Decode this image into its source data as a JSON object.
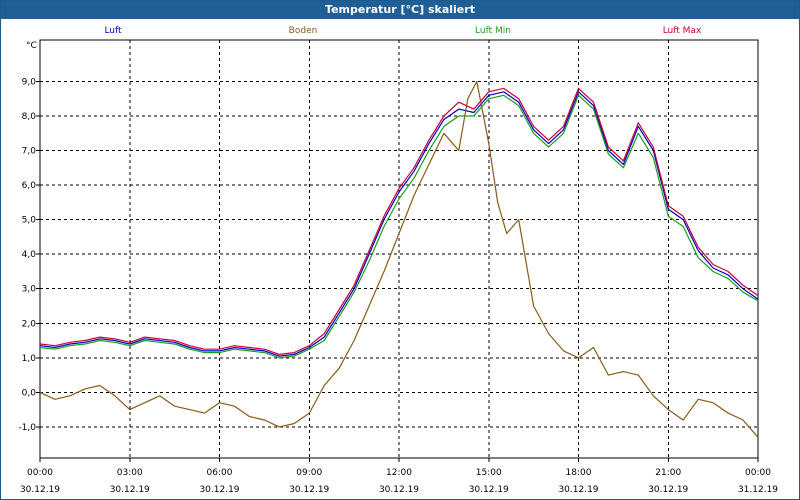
{
  "window": {
    "title": "Temperatur [°C] skaliert"
  },
  "chart_data": {
    "type": "line",
    "title": "Temperatur [°C] skaliert",
    "ylabel": "°C",
    "xlabel": "",
    "ylim": [
      -1.9,
      10.2
    ],
    "grid": true,
    "legend_position": "top",
    "y_ticks": [
      "9,0",
      "8,0",
      "7,0",
      "6,0",
      "5,0",
      "4,0",
      "3,0",
      "2,0",
      "1,0",
      "0,0",
      "-1,0"
    ],
    "y_tick_values": [
      9,
      8,
      7,
      6,
      5,
      4,
      3,
      2,
      1,
      0,
      -1
    ],
    "x_tick_hours": [
      0,
      3,
      6,
      9,
      12,
      15,
      18,
      21,
      24
    ],
    "x_ticks": [
      {
        "time": "00:00",
        "date": "30.12.19"
      },
      {
        "time": "03:00",
        "date": "30.12.19"
      },
      {
        "time": "06:00",
        "date": "30.12.19"
      },
      {
        "time": "09:00",
        "date": "30.12.19"
      },
      {
        "time": "12:00",
        "date": "30.12.19"
      },
      {
        "time": "15:00",
        "date": "30.12.19"
      },
      {
        "time": "18:00",
        "date": "30.12.19"
      },
      {
        "time": "21:00",
        "date": "30.12.19"
      },
      {
        "time": "00:00",
        "date": "31.12.19"
      }
    ],
    "series": [
      {
        "name": "Luft",
        "color": "#0000cc",
        "points": [
          [
            0,
            1.35
          ],
          [
            0.5,
            1.3
          ],
          [
            1,
            1.4
          ],
          [
            1.5,
            1.45
          ],
          [
            2,
            1.55
          ],
          [
            2.5,
            1.5
          ],
          [
            3,
            1.4
          ],
          [
            3.5,
            1.55
          ],
          [
            4,
            1.5
          ],
          [
            4.5,
            1.45
          ],
          [
            5,
            1.3
          ],
          [
            5.5,
            1.2
          ],
          [
            6,
            1.2
          ],
          [
            6.5,
            1.3
          ],
          [
            7,
            1.25
          ],
          [
            7.5,
            1.2
          ],
          [
            8,
            1.05
          ],
          [
            8.5,
            1.1
          ],
          [
            9,
            1.3
          ],
          [
            9.5,
            1.6
          ],
          [
            10,
            2.3
          ],
          [
            10.5,
            3.0
          ],
          [
            11,
            4.0
          ],
          [
            11.5,
            5.0
          ],
          [
            12,
            5.8
          ],
          [
            12.5,
            6.4
          ],
          [
            13,
            7.2
          ],
          [
            13.5,
            7.9
          ],
          [
            14,
            8.2
          ],
          [
            14.5,
            8.1
          ],
          [
            15,
            8.6
          ],
          [
            15.5,
            8.7
          ],
          [
            16,
            8.4
          ],
          [
            16.5,
            7.6
          ],
          [
            17,
            7.2
          ],
          [
            17.5,
            7.6
          ],
          [
            18,
            8.7
          ],
          [
            18.5,
            8.3
          ],
          [
            19,
            7.0
          ],
          [
            19.5,
            6.6
          ],
          [
            20,
            7.7
          ],
          [
            20.5,
            7.0
          ],
          [
            21,
            5.3
          ],
          [
            21.5,
            5.0
          ],
          [
            22,
            4.1
          ],
          [
            22.5,
            3.6
          ],
          [
            23,
            3.4
          ],
          [
            23.5,
            3.0
          ],
          [
            24,
            2.7
          ]
        ]
      },
      {
        "name": "Boden",
        "color": "#8b5a1b",
        "points": [
          [
            0,
            0.0
          ],
          [
            0.5,
            -0.2
          ],
          [
            1,
            -0.1
          ],
          [
            1.5,
            0.1
          ],
          [
            2,
            0.2
          ],
          [
            2.5,
            -0.1
          ],
          [
            3,
            -0.5
          ],
          [
            3.5,
            -0.3
          ],
          [
            4,
            -0.1
          ],
          [
            4.5,
            -0.4
          ],
          [
            5,
            -0.5
          ],
          [
            5.5,
            -0.6
          ],
          [
            6,
            -0.3
          ],
          [
            6.5,
            -0.4
          ],
          [
            7,
            -0.7
          ],
          [
            7.5,
            -0.8
          ],
          [
            8,
            -1.0
          ],
          [
            8.5,
            -0.9
          ],
          [
            9,
            -0.6
          ],
          [
            9.5,
            0.2
          ],
          [
            10,
            0.7
          ],
          [
            10.5,
            1.5
          ],
          [
            11,
            2.5
          ],
          [
            11.5,
            3.5
          ],
          [
            12,
            4.6
          ],
          [
            12.5,
            5.7
          ],
          [
            13,
            6.6
          ],
          [
            13.5,
            7.5
          ],
          [
            14,
            7.0
          ],
          [
            14.3,
            8.5
          ],
          [
            14.6,
            9.0
          ],
          [
            15,
            7.2
          ],
          [
            15.3,
            5.5
          ],
          [
            15.6,
            4.6
          ],
          [
            16,
            5.0
          ],
          [
            16.5,
            2.5
          ],
          [
            17,
            1.7
          ],
          [
            17.5,
            1.2
          ],
          [
            18,
            1.0
          ],
          [
            18.5,
            1.3
          ],
          [
            19,
            0.5
          ],
          [
            19.5,
            0.6
          ],
          [
            20,
            0.5
          ],
          [
            20.5,
            -0.1
          ],
          [
            21,
            -0.5
          ],
          [
            21.5,
            -0.8
          ],
          [
            22,
            -0.2
          ],
          [
            22.5,
            -0.3
          ],
          [
            23,
            -0.6
          ],
          [
            23.5,
            -0.8
          ],
          [
            24,
            -1.3
          ]
        ]
      },
      {
        "name": "Luft Min",
        "color": "#1a9e1a",
        "points": [
          [
            0,
            1.3
          ],
          [
            0.5,
            1.25
          ],
          [
            1,
            1.35
          ],
          [
            1.5,
            1.4
          ],
          [
            2,
            1.5
          ],
          [
            2.5,
            1.45
          ],
          [
            3,
            1.35
          ],
          [
            3.5,
            1.5
          ],
          [
            4,
            1.45
          ],
          [
            4.5,
            1.4
          ],
          [
            5,
            1.25
          ],
          [
            5.5,
            1.15
          ],
          [
            6,
            1.15
          ],
          [
            6.5,
            1.25
          ],
          [
            7,
            1.2
          ],
          [
            7.5,
            1.15
          ],
          [
            8,
            1.0
          ],
          [
            8.5,
            1.05
          ],
          [
            9,
            1.25
          ],
          [
            9.5,
            1.5
          ],
          [
            10,
            2.2
          ],
          [
            10.5,
            2.9
          ],
          [
            11,
            3.8
          ],
          [
            11.5,
            4.8
          ],
          [
            12,
            5.6
          ],
          [
            12.5,
            6.2
          ],
          [
            13,
            7.0
          ],
          [
            13.5,
            7.7
          ],
          [
            14,
            8.0
          ],
          [
            14.5,
            8.0
          ],
          [
            15,
            8.5
          ],
          [
            15.5,
            8.6
          ],
          [
            16,
            8.3
          ],
          [
            16.5,
            7.5
          ],
          [
            17,
            7.1
          ],
          [
            17.5,
            7.5
          ],
          [
            18,
            8.6
          ],
          [
            18.5,
            8.2
          ],
          [
            19,
            6.9
          ],
          [
            19.5,
            6.5
          ],
          [
            20,
            7.5
          ],
          [
            20.5,
            6.8
          ],
          [
            21,
            5.1
          ],
          [
            21.5,
            4.8
          ],
          [
            22,
            3.9
          ],
          [
            22.5,
            3.5
          ],
          [
            23,
            3.3
          ],
          [
            23.5,
            2.9
          ],
          [
            24,
            2.65
          ]
        ]
      },
      {
        "name": "Luft Max",
        "color": "#cc0033",
        "points": [
          [
            0,
            1.4
          ],
          [
            0.5,
            1.35
          ],
          [
            1,
            1.45
          ],
          [
            1.5,
            1.5
          ],
          [
            2,
            1.6
          ],
          [
            2.5,
            1.55
          ],
          [
            3,
            1.45
          ],
          [
            3.5,
            1.6
          ],
          [
            4,
            1.55
          ],
          [
            4.5,
            1.5
          ],
          [
            5,
            1.35
          ],
          [
            5.5,
            1.25
          ],
          [
            6,
            1.25
          ],
          [
            6.5,
            1.35
          ],
          [
            7,
            1.3
          ],
          [
            7.5,
            1.25
          ],
          [
            8,
            1.1
          ],
          [
            8.5,
            1.15
          ],
          [
            9,
            1.35
          ],
          [
            9.5,
            1.7
          ],
          [
            10,
            2.4
          ],
          [
            10.5,
            3.1
          ],
          [
            11,
            4.1
          ],
          [
            11.5,
            5.1
          ],
          [
            12,
            5.9
          ],
          [
            12.5,
            6.5
          ],
          [
            13,
            7.3
          ],
          [
            13.5,
            8.0
          ],
          [
            14,
            8.4
          ],
          [
            14.5,
            8.2
          ],
          [
            15,
            8.7
          ],
          [
            15.5,
            8.8
          ],
          [
            16,
            8.5
          ],
          [
            16.5,
            7.7
          ],
          [
            17,
            7.3
          ],
          [
            17.5,
            7.7
          ],
          [
            18,
            8.8
          ],
          [
            18.5,
            8.4
          ],
          [
            19,
            7.1
          ],
          [
            19.5,
            6.7
          ],
          [
            20,
            7.8
          ],
          [
            20.5,
            7.1
          ],
          [
            21,
            5.4
          ],
          [
            21.5,
            5.1
          ],
          [
            22,
            4.2
          ],
          [
            22.5,
            3.7
          ],
          [
            23,
            3.5
          ],
          [
            23.5,
            3.1
          ],
          [
            24,
            2.8
          ]
        ]
      }
    ]
  }
}
